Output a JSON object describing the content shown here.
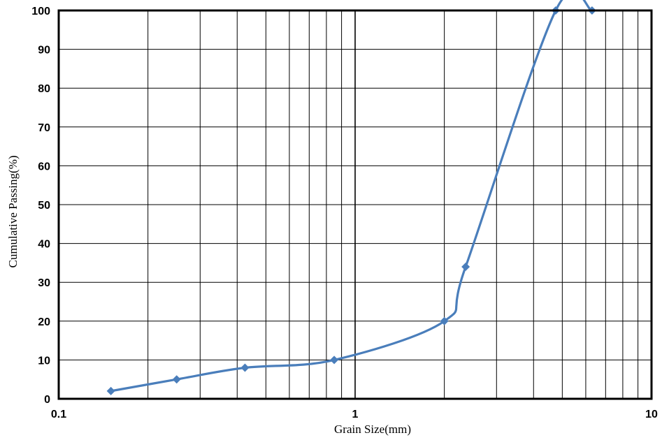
{
  "chart_data": {
    "type": "line",
    "xlabel": "Grain Size(mm)",
    "ylabel": "Cumulative Passing(%)",
    "x_scale": "log",
    "xlim": [
      0.1,
      10
    ],
    "ylim": [
      0,
      100
    ],
    "x_tick_labels": [
      "0.1",
      "1",
      "10"
    ],
    "y_tick_labels": [
      "0",
      "10",
      "20",
      "30",
      "40",
      "50",
      "60",
      "70",
      "80",
      "90",
      "100"
    ],
    "grid": true,
    "legend": "none",
    "series": [
      {
        "color": "#4a7ebb",
        "marker": "diamond",
        "x": [
          0.15,
          0.25,
          0.425,
          0.85,
          2.0,
          2.36,
          4.75,
          6.3
        ],
        "y": [
          2,
          5,
          8,
          10,
          20,
          34,
          100,
          100
        ]
      }
    ]
  }
}
